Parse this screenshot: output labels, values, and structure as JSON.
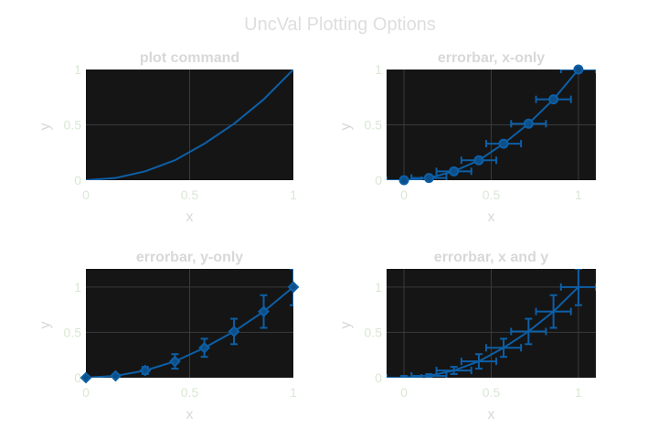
{
  "figure": {
    "title": "UncVal Plotting Options"
  },
  "chart_data": [
    {
      "type": "line",
      "title": "plot command",
      "xlabel": "x",
      "ylabel": "y",
      "xlim": [
        0,
        1
      ],
      "ylim": [
        0,
        1
      ],
      "xticks": [
        "0",
        "0.5",
        "1"
      ],
      "yticks": [
        "0",
        "0.5",
        "1"
      ],
      "grid": true,
      "error_mode": "none",
      "marker": "none",
      "x": [
        0,
        0.143,
        0.286,
        0.429,
        0.571,
        0.714,
        0.857,
        1.0
      ],
      "y": [
        0,
        0.02,
        0.08,
        0.18,
        0.33,
        0.51,
        0.73,
        1.0
      ],
      "xerr": [
        0,
        0,
        0,
        0,
        0,
        0,
        0,
        0
      ],
      "yerr": [
        0,
        0,
        0,
        0,
        0,
        0,
        0,
        0
      ],
      "color": "#0d5fa6"
    },
    {
      "type": "line",
      "title": "errorbar, x-only",
      "xlabel": "x",
      "ylabel": "y",
      "xlim": [
        -0.1,
        1.1
      ],
      "ylim": [
        0,
        1
      ],
      "xticks": [
        "0",
        "0.5",
        "1"
      ],
      "yticks": [
        "0",
        "0.5",
        "1"
      ],
      "grid": true,
      "error_mode": "x",
      "marker": "circle",
      "x": [
        0,
        0.143,
        0.286,
        0.429,
        0.571,
        0.714,
        0.857,
        1.0
      ],
      "y": [
        0,
        0.02,
        0.08,
        0.18,
        0.33,
        0.51,
        0.73,
        1.0
      ],
      "xerr": [
        0.1,
        0.1,
        0.1,
        0.1,
        0.1,
        0.1,
        0.1,
        0.1
      ],
      "yerr": [
        0,
        0,
        0,
        0,
        0,
        0,
        0,
        0
      ],
      "color": "#0d5fa6"
    },
    {
      "type": "line",
      "title": "errorbar, y-only",
      "xlabel": "x",
      "ylabel": "y",
      "xlim": [
        0,
        1
      ],
      "ylim": [
        0,
        1.2
      ],
      "xticks": [
        "0",
        "0.5",
        "1"
      ],
      "yticks": [
        "0",
        "0.5",
        "1"
      ],
      "grid": true,
      "error_mode": "y",
      "marker": "diamond",
      "x": [
        0,
        0.143,
        0.286,
        0.429,
        0.571,
        0.714,
        0.857,
        1.0
      ],
      "y": [
        0,
        0.02,
        0.08,
        0.18,
        0.33,
        0.51,
        0.73,
        1.0
      ],
      "xerr": [
        0,
        0,
        0,
        0,
        0,
        0,
        0,
        0
      ],
      "yerr": [
        0.02,
        0.02,
        0.04,
        0.08,
        0.1,
        0.14,
        0.18,
        0.2
      ],
      "color": "#0d5fa6"
    },
    {
      "type": "line",
      "title": "errorbar, x and y",
      "xlabel": "x",
      "ylabel": "y",
      "xlim": [
        -0.1,
        1.1
      ],
      "ylim": [
        0,
        1.2
      ],
      "xticks": [
        "0",
        "0.5",
        "1"
      ],
      "yticks": [
        "0",
        "0.5",
        "1"
      ],
      "grid": true,
      "error_mode": "xy",
      "marker": "none",
      "x": [
        0,
        0.143,
        0.286,
        0.429,
        0.571,
        0.714,
        0.857,
        1.0
      ],
      "y": [
        0,
        0.02,
        0.08,
        0.18,
        0.33,
        0.51,
        0.73,
        1.0
      ],
      "xerr": [
        0.1,
        0.1,
        0.1,
        0.1,
        0.1,
        0.1,
        0.1,
        0.1
      ],
      "yerr": [
        0.02,
        0.02,
        0.04,
        0.08,
        0.1,
        0.14,
        0.18,
        0.2
      ],
      "color": "#0d5fa6"
    }
  ]
}
